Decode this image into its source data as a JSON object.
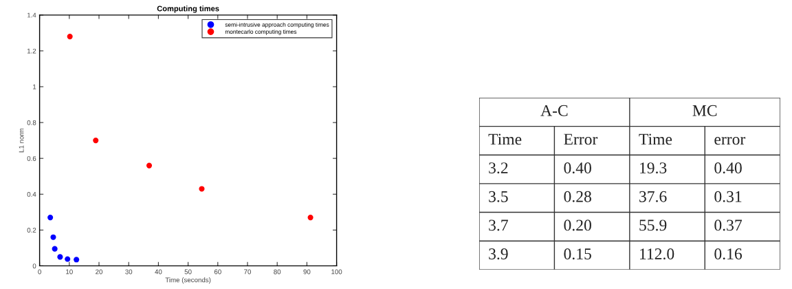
{
  "chart_data": [
    {
      "type": "scatter",
      "title": "Computing times",
      "xlabel": "Time (seconds)",
      "ylabel": "L1 norm",
      "series": [
        {
          "name": "semi-intrusive approach computing times",
          "color": "#0000ff",
          "x": [
            3.6,
            4.6,
            5.1,
            6.9,
            9.4,
            12.4
          ],
          "values": [
            0.27,
            0.16,
            0.095,
            0.05,
            0.038,
            0.035
          ]
        },
        {
          "name": "montecarlo computing times",
          "color": "#ff0000",
          "x": [
            10.2,
            18.9,
            36.9,
            54.6,
            91.2
          ],
          "values": [
            1.28,
            0.7,
            0.56,
            0.43,
            0.27
          ]
        }
      ],
      "xlim": [
        0,
        100
      ],
      "xticks": [
        0,
        10,
        20,
        30,
        40,
        50,
        60,
        70,
        80,
        90,
        100
      ],
      "ylim": [
        0,
        1.4
      ],
      "yticks": [
        0,
        0.2,
        0.4,
        0.6,
        0.8,
        1,
        1.2,
        1.4
      ],
      "marker": "circle",
      "legend": "top right",
      "grid": false
    },
    {
      "type": "other",
      "annotations": [
        "A-C",
        "MC",
        "Time",
        "Error",
        "Time",
        "error",
        "3.2",
        "0.40",
        "19.3",
        "0.40",
        "3.5",
        "0.28",
        "37.6",
        "0.31",
        "3.7",
        "0.20",
        "55.9",
        "0.37",
        "3.9",
        "0.15",
        "112.0",
        "0.16"
      ]
    }
  ]
}
